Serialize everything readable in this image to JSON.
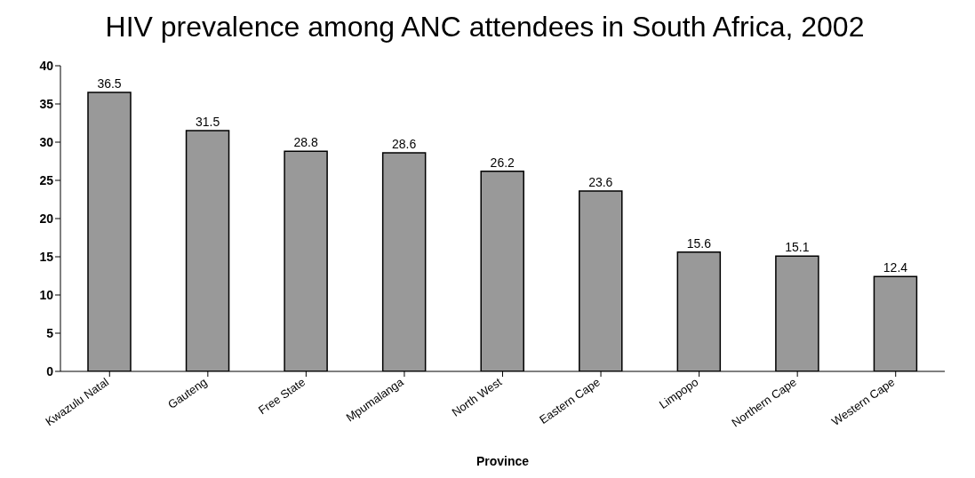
{
  "chart_data": {
    "type": "bar",
    "title": "HIV prevalence among ANC attendees in South Africa, 2002",
    "xlabel": "Province",
    "categories": [
      "Kwazulu Natal",
      "Gauteng",
      "Free State",
      "Mpumalanga",
      "North West",
      "Eastern Cape",
      "Limpopo",
      "Northern Cape",
      "Western Cape"
    ],
    "values": [
      36.5,
      31.5,
      28.8,
      28.6,
      26.2,
      23.6,
      15.6,
      15.1,
      12.4
    ],
    "color": "#999999",
    "ylim": [
      0,
      40
    ],
    "yticks": [
      0,
      5,
      10,
      15,
      20,
      25,
      30,
      35,
      40
    ],
    "grid": false,
    "data_labels": true
  }
}
